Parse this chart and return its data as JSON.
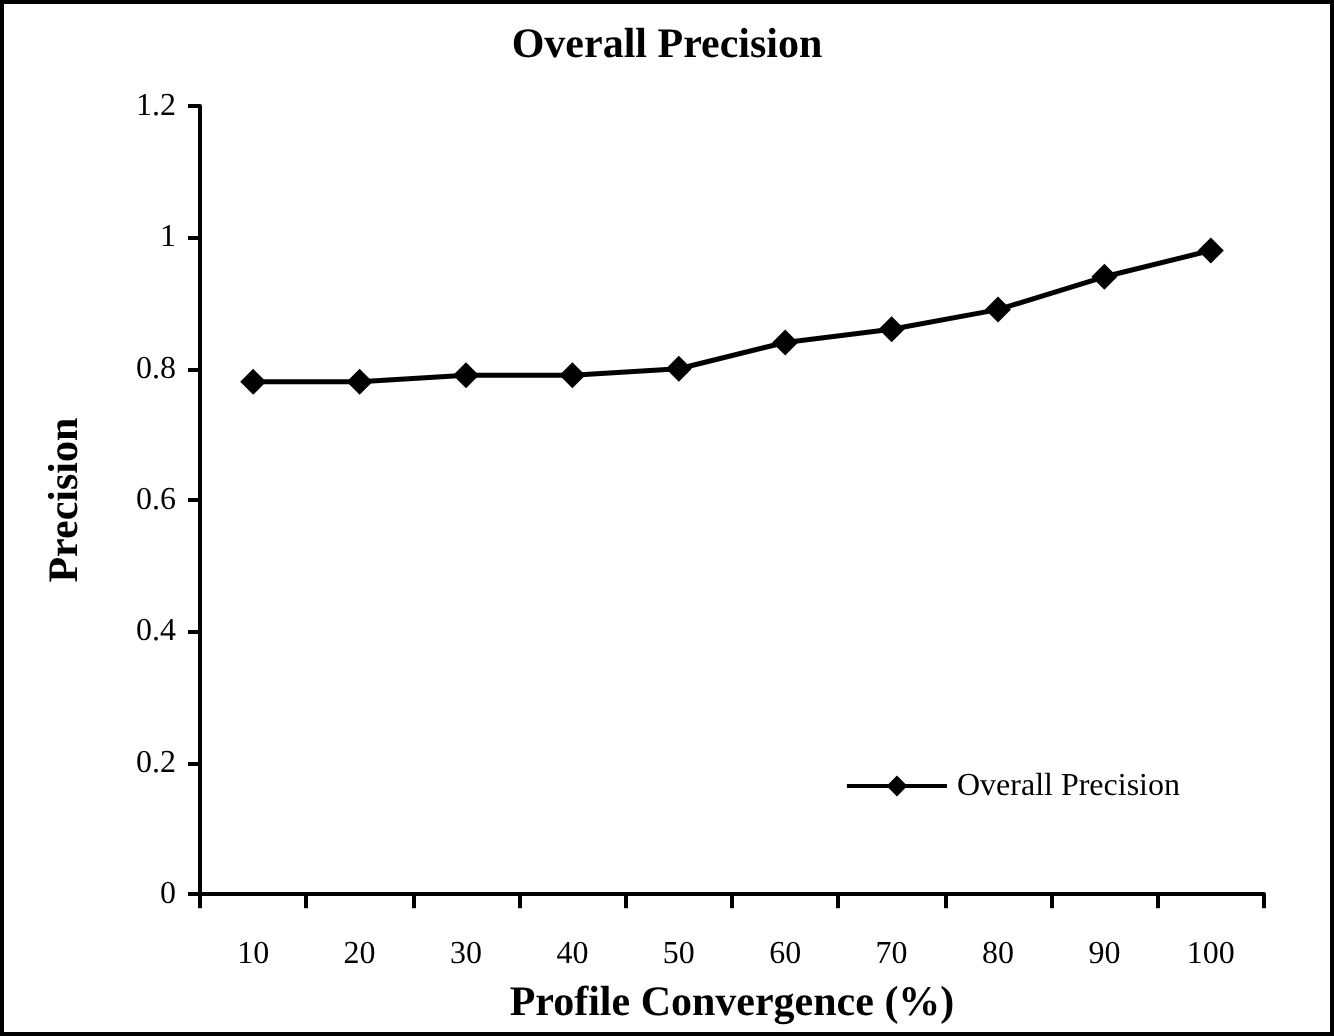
{
  "chart_data": {
    "type": "line",
    "title": "Overall Precision",
    "xlabel": "Profile Convergence (%)",
    "ylabel": "Precision",
    "categories": [
      "10",
      "20",
      "30",
      "40",
      "50",
      "60",
      "70",
      "80",
      "90",
      "100"
    ],
    "series": [
      {
        "name": "Overall Precision",
        "color": "#000000",
        "values": [
          0.78,
          0.78,
          0.79,
          0.79,
          0.8,
          0.84,
          0.86,
          0.89,
          0.94,
          0.98
        ]
      }
    ],
    "ylim": [
      0,
      1.2
    ],
    "yticks": [
      0,
      0.2,
      0.4,
      0.6,
      0.8,
      1,
      1.2
    ],
    "grid": false,
    "legend": "bottom right",
    "marker": "diamond",
    "line_style": "solid"
  }
}
